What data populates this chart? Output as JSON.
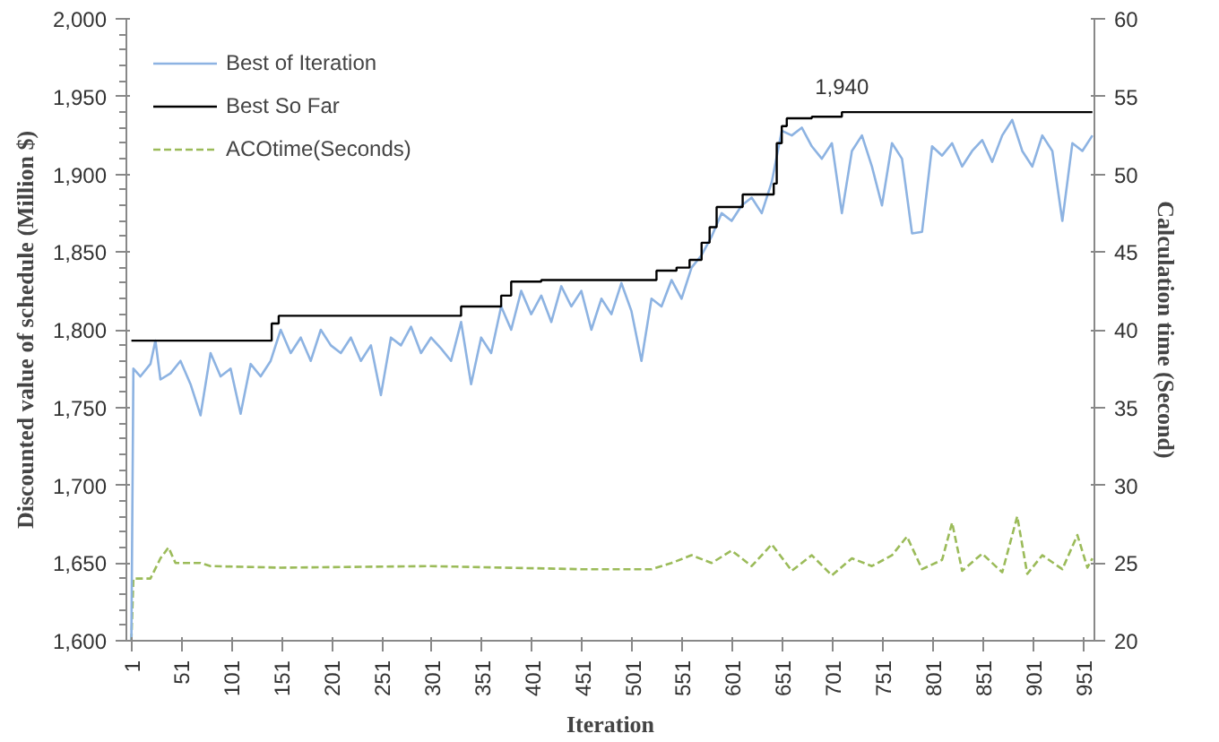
{
  "chart_data": {
    "type": "line",
    "xlabel": "Iteration",
    "ylabel": "Discounted value of schedule (Million $)",
    "y2label": "Calculation time (Second)",
    "xlim": [
      -4,
      962
    ],
    "xticks": [
      1,
      51,
      101,
      151,
      201,
      251,
      301,
      351,
      401,
      451,
      501,
      551,
      601,
      651,
      701,
      751,
      801,
      851,
      901,
      951
    ],
    "ylim": [
      1600,
      2000
    ],
    "yticks": [
      {
        "value": 1600,
        "label": "1,600"
      },
      {
        "value": 1650,
        "label": "1,650"
      },
      {
        "value": 1700,
        "label": "1,700"
      },
      {
        "value": 1750,
        "label": "1,750"
      },
      {
        "value": 1800,
        "label": "1,800"
      },
      {
        "value": 1850,
        "label": "1,850"
      },
      {
        "value": 1900,
        "label": "1,900"
      },
      {
        "value": 1950,
        "label": "1,950"
      },
      {
        "value": 2000,
        "label": "2,000"
      }
    ],
    "y2lim": [
      20,
      60
    ],
    "y2ticks": [
      20,
      25,
      30,
      35,
      40,
      45,
      50,
      55,
      60
    ],
    "grid": false,
    "legend": "top left",
    "annotations": [
      {
        "text": "1,940",
        "x": 710,
        "y": 1940
      }
    ],
    "series": [
      {
        "name": "Best of Iteration",
        "color": "#8db3e2",
        "line_style": "solid",
        "x": [
          1,
          3,
          10,
          20,
          25,
          30,
          40,
          50,
          60,
          70,
          80,
          90,
          100,
          110,
          120,
          130,
          140,
          150,
          160,
          170,
          180,
          190,
          200,
          210,
          220,
          230,
          240,
          250,
          260,
          270,
          280,
          290,
          300,
          310,
          320,
          330,
          340,
          350,
          360,
          370,
          380,
          390,
          400,
          410,
          420,
          430,
          440,
          450,
          460,
          470,
          480,
          490,
          500,
          510,
          520,
          530,
          540,
          550,
          560,
          570,
          580,
          590,
          600,
          610,
          620,
          630,
          640,
          650,
          660,
          670,
          680,
          690,
          700,
          710,
          720,
          730,
          740,
          750,
          760,
          770,
          780,
          790,
          800,
          810,
          820,
          830,
          840,
          850,
          860,
          870,
          880,
          890,
          900,
          910,
          920,
          930,
          940,
          950,
          960
        ],
        "values": [
          1600,
          1775,
          1770,
          1778,
          1793,
          1768,
          1772,
          1780,
          1765,
          1745,
          1785,
          1770,
          1775,
          1746,
          1778,
          1770,
          1780,
          1800,
          1785,
          1795,
          1780,
          1800,
          1790,
          1785,
          1795,
          1780,
          1790,
          1758,
          1795,
          1790,
          1802,
          1785,
          1795,
          1788,
          1780,
          1805,
          1765,
          1795,
          1785,
          1815,
          1800,
          1825,
          1810,
          1822,
          1805,
          1828,
          1815,
          1825,
          1800,
          1820,
          1810,
          1830,
          1812,
          1780,
          1820,
          1815,
          1832,
          1820,
          1840,
          1848,
          1860,
          1875,
          1870,
          1880,
          1885,
          1875,
          1895,
          1928,
          1925,
          1930,
          1918,
          1910,
          1920,
          1875,
          1915,
          1925,
          1905,
          1880,
          1920,
          1910,
          1862,
          1863,
          1918,
          1912,
          1920,
          1905,
          1915,
          1922,
          1908,
          1925,
          1935,
          1915,
          1905,
          1925,
          1915,
          1870,
          1920,
          1915,
          1925
        ]
      },
      {
        "name": "Best So Far",
        "color": "#000000",
        "line_style": "solid",
        "type": "step",
        "x": [
          1,
          141,
          148,
          330,
          370,
          380,
          410,
          525,
          545,
          558,
          570,
          578,
          585,
          611,
          642,
          645,
          650,
          655,
          680,
          710,
          960
        ],
        "values": [
          1793,
          1804,
          1809,
          1815,
          1822,
          1831,
          1832,
          1838,
          1840,
          1845,
          1856,
          1866,
          1879,
          1887,
          1894,
          1920,
          1931,
          1936,
          1937,
          1940,
          1940
        ]
      },
      {
        "name": "ACOtime(Seconds)",
        "color": "#9bbb59",
        "line_style": "dashed",
        "axis": "y2",
        "x": [
          1,
          3,
          20,
          30,
          38,
          45,
          70,
          80,
          150,
          300,
          450,
          520,
          540,
          560,
          580,
          600,
          620,
          640,
          660,
          680,
          700,
          720,
          740,
          760,
          775,
          790,
          810,
          820,
          830,
          850,
          870,
          885,
          895,
          910,
          930,
          945,
          955,
          960
        ],
        "values": [
          20,
          24,
          24,
          25.3,
          26,
          25,
          25,
          24.8,
          24.7,
          24.8,
          24.6,
          24.6,
          25,
          25.5,
          25,
          25.8,
          24.8,
          26.2,
          24.5,
          25.5,
          24.2,
          25.3,
          24.8,
          25.5,
          26.7,
          24.6,
          25.2,
          27.6,
          24.5,
          25.6,
          24.4,
          28,
          24.3,
          25.5,
          24.6,
          26.8,
          24.7,
          25.3
        ]
      }
    ]
  }
}
